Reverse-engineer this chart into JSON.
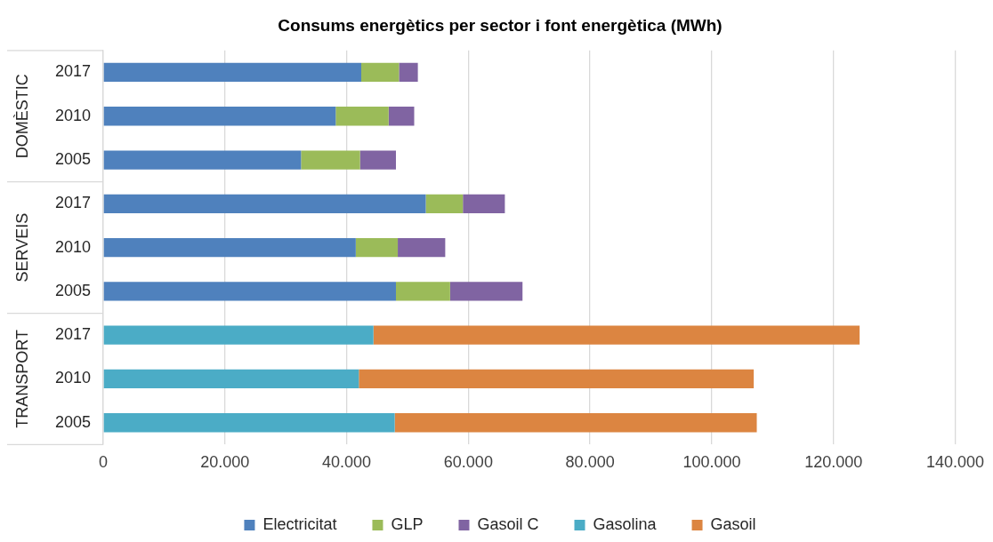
{
  "chart_data": {
    "type": "bar",
    "orientation": "horizontal",
    "stacked": true,
    "title": "Consums energètics per sector i font energètica (MWh)",
    "categories": [
      "2017",
      "2010",
      "2005",
      "2017",
      "2010",
      "2005",
      "2017",
      "2010",
      "2005"
    ],
    "annotations": [
      "DOMÈSTIC",
      "SERVEIS",
      "TRANSPORT"
    ],
    "series": [
      {
        "name": "Electricitat",
        "color": "#4f81bd",
        "values": [
          42400,
          38200,
          32500,
          53000,
          41500,
          48100,
          null,
          null,
          null
        ]
      },
      {
        "name": "GLP",
        "color": "#9bbb59",
        "values": [
          6200,
          8700,
          9700,
          6100,
          6900,
          8900,
          null,
          null,
          null
        ]
      },
      {
        "name": "Gasoil C",
        "color": "#8064a2",
        "values": [
          3100,
          4200,
          5900,
          6900,
          7800,
          11900,
          null,
          null,
          null
        ]
      },
      {
        "name": "Gasolina",
        "color": "#4bacc6",
        "values": [
          null,
          null,
          null,
          null,
          null,
          null,
          44400,
          42000,
          47900
        ]
      },
      {
        "name": "Gasoil",
        "color": "#dc8541",
        "values": [
          null,
          null,
          null,
          null,
          null,
          null,
          79900,
          64900,
          59500
        ]
      }
    ],
    "xlim": [
      0,
      140000
    ],
    "xticks": [
      {
        "value": 0,
        "label": "0"
      },
      {
        "value": 20000,
        "label": "20.000"
      },
      {
        "value": 40000,
        "label": "40.000"
      },
      {
        "value": 60000,
        "label": "60.000"
      },
      {
        "value": 80000,
        "label": "80.000"
      },
      {
        "value": 100000,
        "label": "100.000"
      },
      {
        "value": 120000,
        "label": "120.000"
      },
      {
        "value": 140000,
        "label": "140.000"
      }
    ],
    "grid": "x",
    "legend": "bottom"
  }
}
